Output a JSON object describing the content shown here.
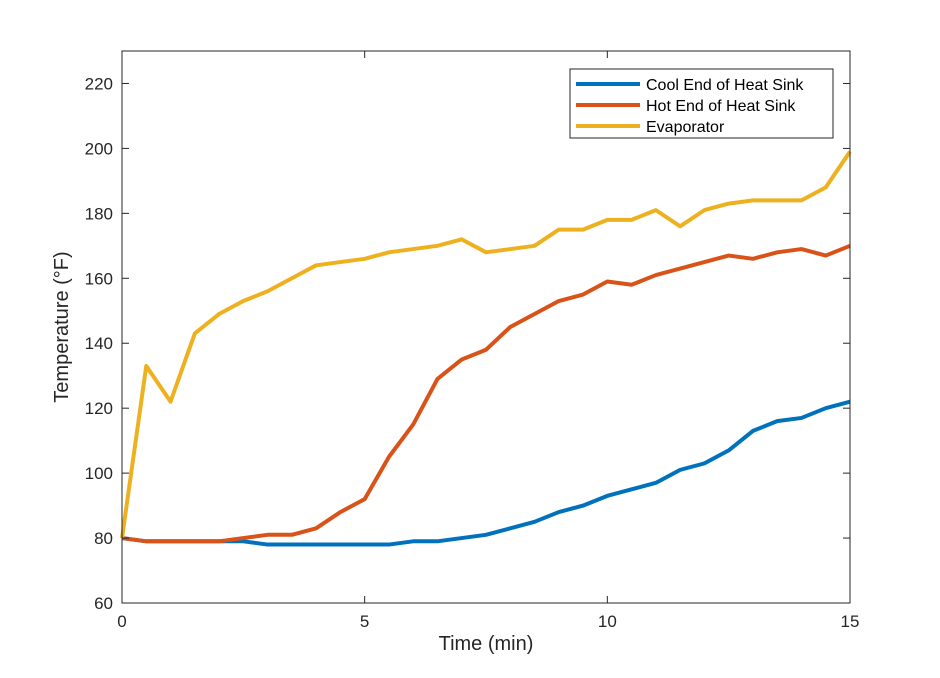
{
  "chart_data": {
    "type": "line",
    "xlabel": "Time (min)",
    "ylabel": "Temperature (°F)",
    "xlim": [
      0,
      15
    ],
    "ylim": [
      60,
      230
    ],
    "xticks": [
      0,
      5,
      10,
      15
    ],
    "yticks": [
      60,
      80,
      100,
      120,
      140,
      160,
      180,
      200,
      220
    ],
    "grid": false,
    "legend_position": "top-right",
    "x": [
      0,
      0.5,
      1,
      1.5,
      2,
      2.5,
      3,
      3.5,
      4,
      4.5,
      5,
      5.5,
      6,
      6.5,
      7,
      7.5,
      8,
      8.5,
      9,
      9.5,
      10,
      10.5,
      11,
      11.5,
      12,
      12.5,
      13,
      13.5,
      14,
      14.5,
      15
    ],
    "series": [
      {
        "name": "Cool End of Heat Sink",
        "color": "#0072BD",
        "values": [
          80,
          79,
          79,
          79,
          79,
          79,
          78,
          78,
          78,
          78,
          78,
          78,
          79,
          79,
          80,
          81,
          83,
          85,
          88,
          90,
          93,
          95,
          97,
          101,
          103,
          107,
          113,
          116,
          117,
          120,
          122
        ]
      },
      {
        "name": "Hot End of Heat Sink",
        "color": "#D95319",
        "values": [
          80,
          79,
          79,
          79,
          79,
          80,
          81,
          81,
          83,
          88,
          92,
          105,
          115,
          129,
          135,
          138,
          145,
          149,
          153,
          155,
          159,
          158,
          161,
          163,
          165,
          167,
          166,
          168,
          169,
          167,
          170
        ]
      },
      {
        "name": "Evaporator",
        "color": "#EDB120",
        "values": [
          80,
          133,
          122,
          143,
          149,
          153,
          156,
          160,
          164,
          165,
          166,
          168,
          169,
          170,
          172,
          168,
          169,
          170,
          175,
          175,
          178,
          178,
          181,
          176,
          181,
          183,
          184,
          184,
          184,
          188,
          199
        ]
      }
    ]
  }
}
